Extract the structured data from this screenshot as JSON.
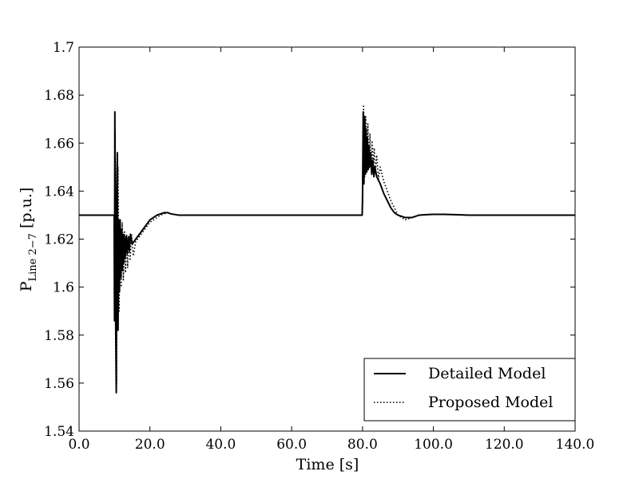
{
  "chart_data": {
    "type": "line",
    "xlabel": "Time [s]",
    "ylabel_main": "P",
    "ylabel_sub": "Line 2−7",
    "ylabel_unit": " [p.u.]",
    "xlim": [
      0,
      140
    ],
    "ylim": [
      1.54,
      1.7
    ],
    "xticks": [
      0,
      20,
      40,
      60,
      80,
      100,
      120,
      140
    ],
    "xtick_labels": [
      "0.0",
      "20.0",
      "40.0",
      "60.0",
      "80.0",
      "100.0",
      "120.0",
      "140.0"
    ],
    "yticks": [
      1.54,
      1.56,
      1.58,
      1.6,
      1.62,
      1.64,
      1.66,
      1.68,
      1.7
    ],
    "ytick_labels": [
      "1.54",
      "1.56",
      "1.58",
      "1.6",
      "1.62",
      "1.64",
      "1.66",
      "1.68",
      "1.7"
    ],
    "grid": false,
    "legend_position": "bottom-right",
    "series": [
      {
        "name": "Detailed Model",
        "style": "solid",
        "color": "#000000",
        "x": [
          0,
          9.9,
          10.0,
          10.1,
          10.3,
          10.5,
          10.6,
          10.8,
          11.0,
          11.2,
          11.4,
          11.6,
          11.8,
          12.0,
          12.2,
          12.4,
          12.6,
          12.8,
          13.0,
          13.3,
          13.6,
          13.9,
          14.2,
          14.5,
          15,
          16,
          17,
          18,
          19,
          20,
          21,
          22,
          23,
          24,
          25,
          26,
          28,
          30,
          35,
          40,
          50,
          60,
          70,
          79.9,
          80.0,
          80.2,
          80.4,
          80.6,
          80.8,
          81.0,
          81.2,
          81.4,
          81.6,
          81.8,
          82.0,
          82.3,
          82.6,
          82.9,
          83.2,
          83.5,
          84,
          85,
          86,
          87,
          88,
          89,
          90,
          91,
          92,
          93,
          94,
          95,
          96,
          98,
          100,
          103,
          106,
          110,
          115,
          120,
          130,
          140
        ],
        "y": [
          1.63,
          1.63,
          1.586,
          1.673,
          1.59,
          1.556,
          1.635,
          1.656,
          1.582,
          1.628,
          1.598,
          1.628,
          1.604,
          1.624,
          1.607,
          1.622,
          1.61,
          1.621,
          1.612,
          1.621,
          1.614,
          1.621,
          1.615,
          1.622,
          1.618,
          1.62,
          1.622,
          1.624,
          1.626,
          1.628,
          1.629,
          1.63,
          1.6305,
          1.631,
          1.631,
          1.6305,
          1.63,
          1.63,
          1.63,
          1.63,
          1.63,
          1.63,
          1.63,
          1.63,
          1.636,
          1.673,
          1.643,
          1.671,
          1.647,
          1.666,
          1.648,
          1.662,
          1.649,
          1.659,
          1.65,
          1.656,
          1.647,
          1.653,
          1.646,
          1.65,
          1.646,
          1.643,
          1.639,
          1.636,
          1.633,
          1.631,
          1.63,
          1.6295,
          1.629,
          1.629,
          1.629,
          1.6295,
          1.63,
          1.6302,
          1.6303,
          1.6303,
          1.6302,
          1.63,
          1.63,
          1.63,
          1.63,
          1.63
        ]
      },
      {
        "name": "Proposed Model",
        "style": "dotted",
        "color": "#000000",
        "x": [
          0,
          9.9,
          10.0,
          10.2,
          10.4,
          10.6,
          10.8,
          11.0,
          11.3,
          11.6,
          11.9,
          12.2,
          12.5,
          12.8,
          13.1,
          13.4,
          13.7,
          14.0,
          14.4,
          14.8,
          15.3,
          16,
          17,
          18,
          19,
          20,
          21,
          22,
          23,
          24,
          25,
          26,
          28,
          30,
          35,
          40,
          50,
          60,
          70,
          79.9,
          80.0,
          80.3,
          80.6,
          80.9,
          81.2,
          81.5,
          81.8,
          82.1,
          82.4,
          82.7,
          83.0,
          83.3,
          83.6,
          84.0,
          84.5,
          85,
          86,
          87,
          88,
          89,
          90,
          91,
          92,
          93,
          94,
          95,
          96,
          98,
          100,
          103,
          106,
          110,
          115,
          120,
          130,
          140
        ],
        "y": [
          1.63,
          1.63,
          1.588,
          1.665,
          1.6,
          1.56,
          1.64,
          1.65,
          1.59,
          1.626,
          1.6,
          1.627,
          1.603,
          1.623,
          1.606,
          1.622,
          1.608,
          1.621,
          1.611,
          1.622,
          1.613,
          1.619,
          1.621,
          1.623,
          1.625,
          1.627,
          1.628,
          1.629,
          1.63,
          1.6305,
          1.631,
          1.6305,
          1.63,
          1.63,
          1.63,
          1.63,
          1.63,
          1.63,
          1.63,
          1.63,
          1.64,
          1.676,
          1.646,
          1.671,
          1.648,
          1.668,
          1.649,
          1.664,
          1.65,
          1.661,
          1.649,
          1.658,
          1.647,
          1.655,
          1.645,
          1.65,
          1.644,
          1.64,
          1.636,
          1.633,
          1.63,
          1.629,
          1.628,
          1.6285,
          1.629,
          1.6295,
          1.63,
          1.6302,
          1.6303,
          1.6303,
          1.6302,
          1.63,
          1.63,
          1.63,
          1.63,
          1.63
        ]
      }
    ]
  }
}
